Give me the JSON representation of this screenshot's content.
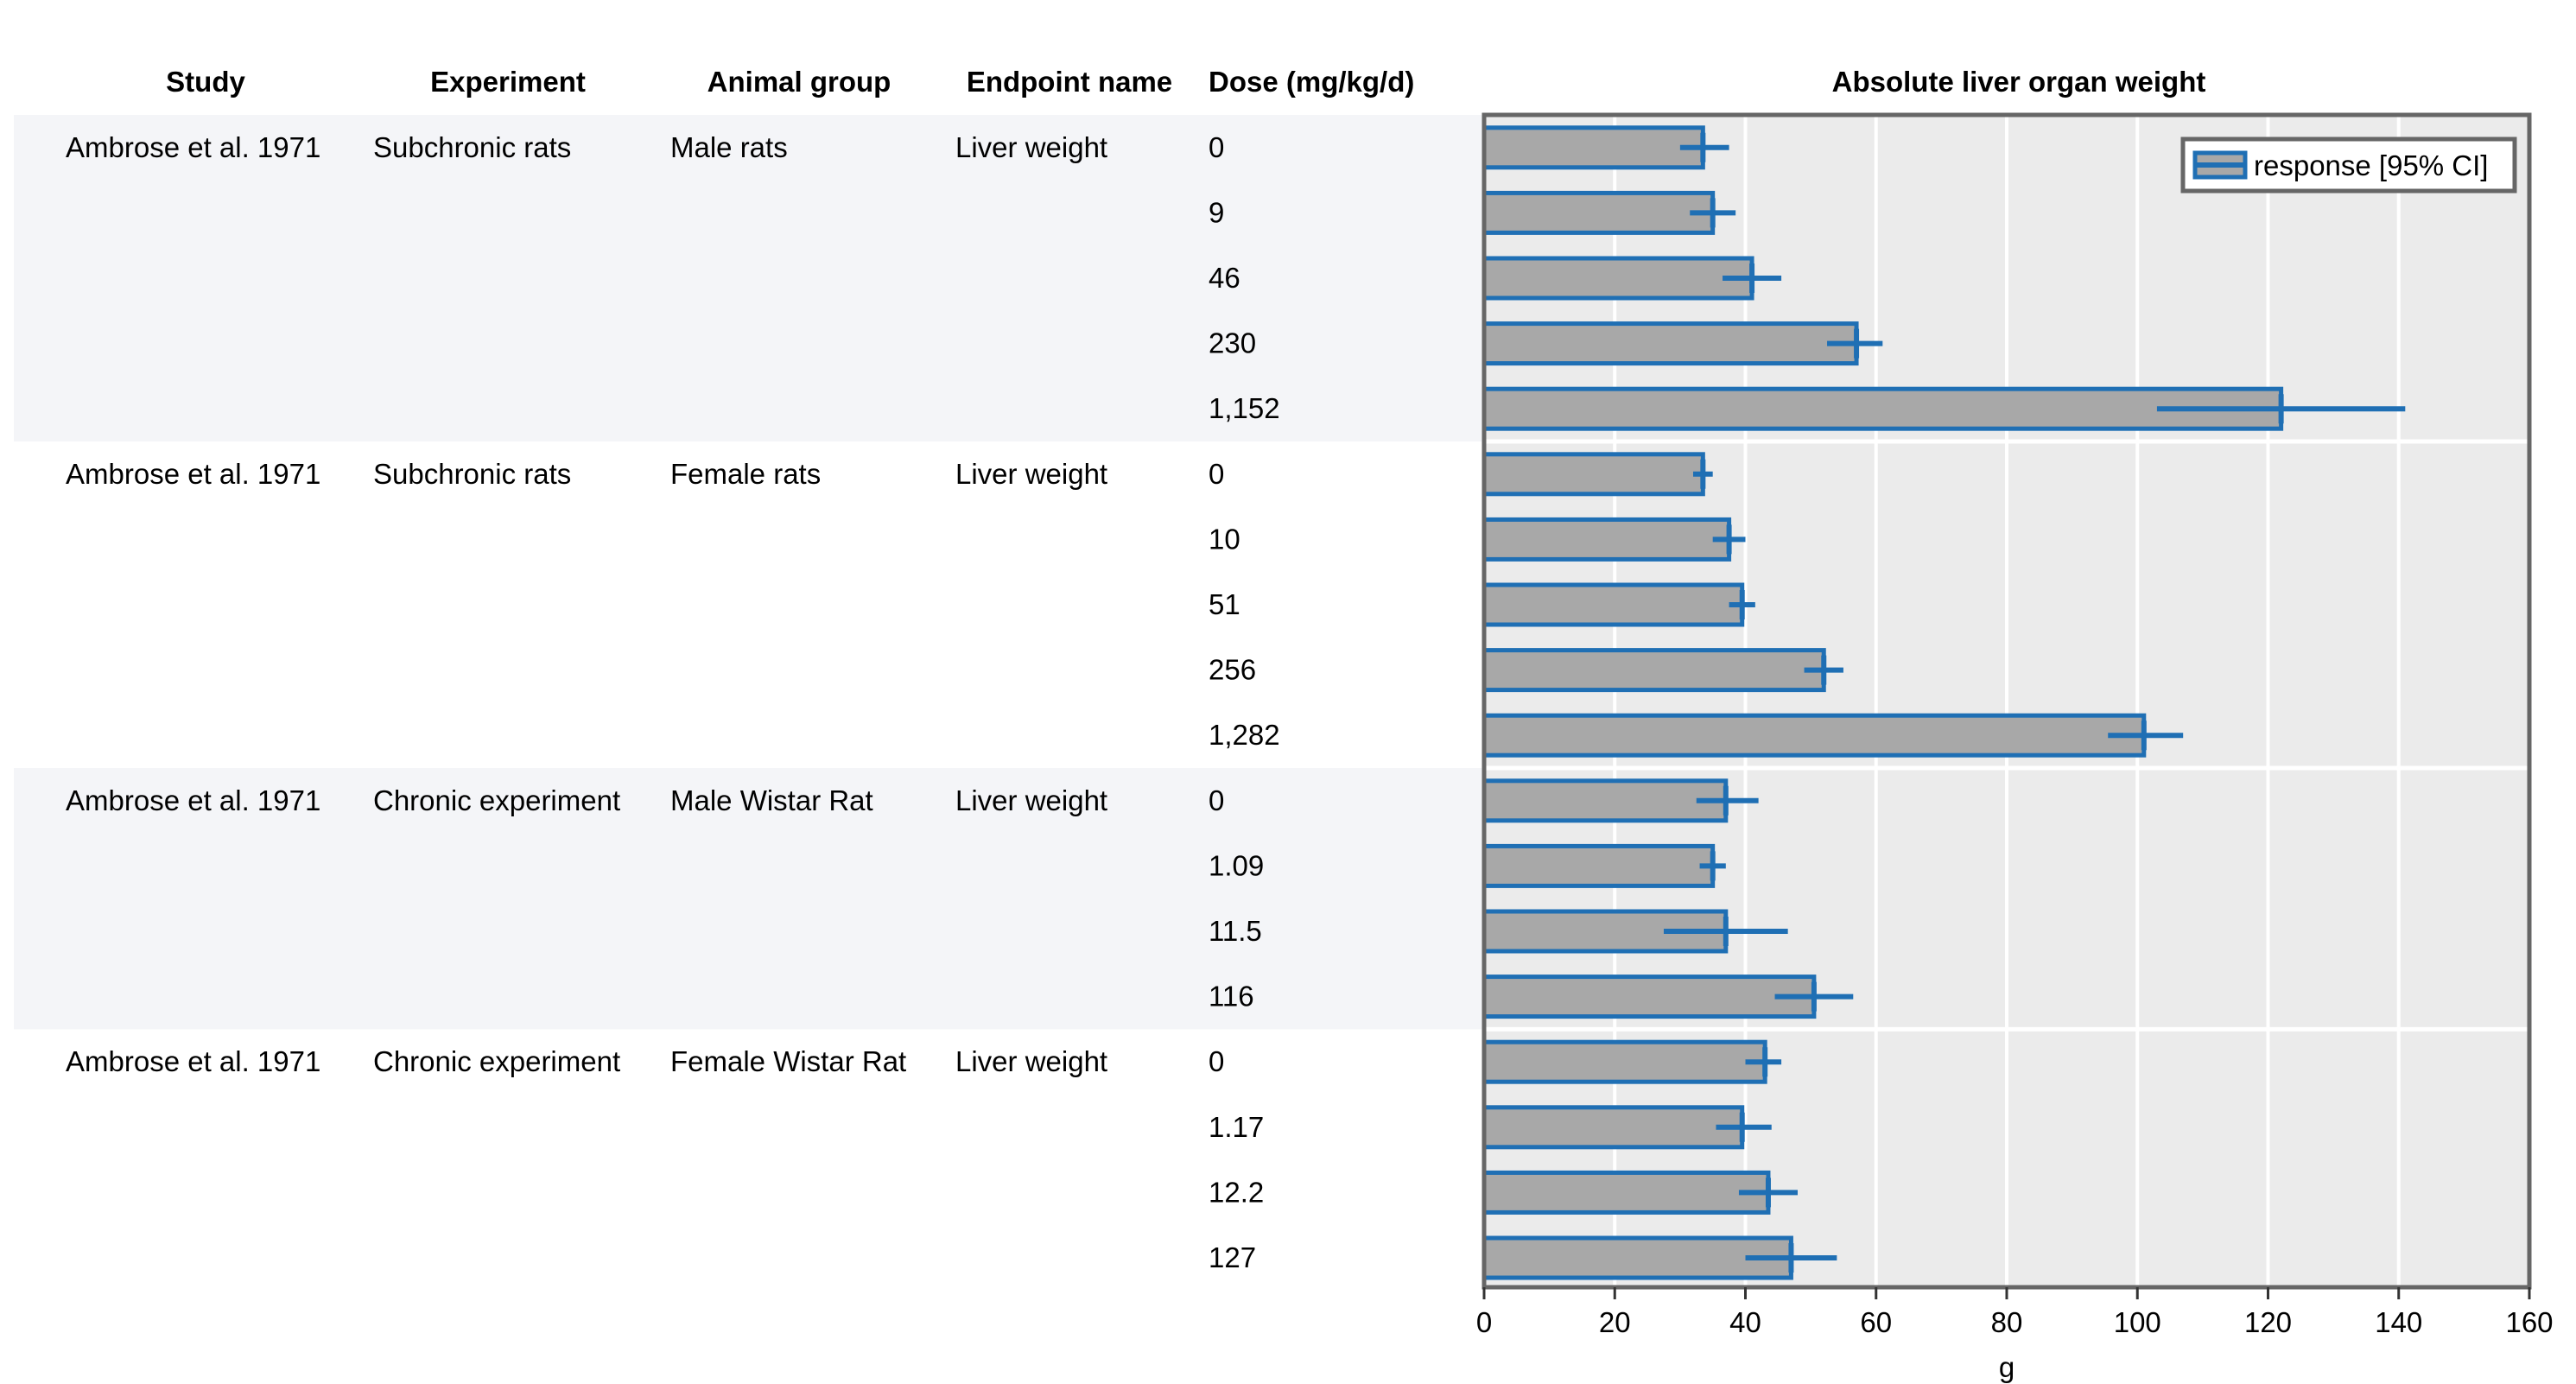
{
  "chart_data": {
    "type": "bar",
    "orientation": "horizontal",
    "title": "Absolute liver organ weight",
    "xlabel": "g",
    "xlim": [
      0,
      160
    ],
    "xticks": [
      0,
      20,
      40,
      60,
      80,
      100,
      120,
      140,
      160
    ],
    "grid": true,
    "legend": {
      "label": "response [95% CI]",
      "placement": "top-right"
    },
    "colors": {
      "bar_fill": "#a8a8a8",
      "bar_stroke": "#1f6fb4",
      "ci": "#1f6fb4",
      "plot_bg": "#ebebeb",
      "plot_border": "#666666",
      "stripe": "#f4f5f8"
    },
    "columns": [
      "Study",
      "Experiment",
      "Animal group",
      "Endpoint name",
      "Dose (mg/kg/d)"
    ],
    "groups": [
      {
        "study": "Ambrose et al. 1971",
        "experiment": "Subchronic rats",
        "animal_group": "Male rats",
        "endpoint": "Liver weight",
        "rows": [
          {
            "dose": "0",
            "value": 33.5,
            "ci": [
              30.0,
              37.5
            ]
          },
          {
            "dose": "9",
            "value": 35.0,
            "ci": [
              31.5,
              38.5
            ]
          },
          {
            "dose": "46",
            "value": 41.0,
            "ci": [
              36.5,
              45.5
            ]
          },
          {
            "dose": "230",
            "value": 57.0,
            "ci": [
              52.5,
              61.0
            ]
          },
          {
            "dose": "1,152",
            "value": 122.0,
            "ci": [
              103.0,
              141.0
            ]
          }
        ]
      },
      {
        "study": "Ambrose et al. 1971",
        "experiment": "Subchronic rats",
        "animal_group": "Female rats",
        "endpoint": "Liver weight",
        "rows": [
          {
            "dose": "0",
            "value": 33.5,
            "ci": [
              32.0,
              35.0
            ]
          },
          {
            "dose": "10",
            "value": 37.5,
            "ci": [
              35.0,
              40.0
            ]
          },
          {
            "dose": "51",
            "value": 39.5,
            "ci": [
              37.5,
              41.5
            ]
          },
          {
            "dose": "256",
            "value": 52.0,
            "ci": [
              49.0,
              55.0
            ]
          },
          {
            "dose": "1,282",
            "value": 101.0,
            "ci": [
              95.5,
              107.0
            ]
          }
        ]
      },
      {
        "study": "Ambrose et al. 1971",
        "experiment": "Chronic experiment",
        "animal_group": "Male Wistar Rat",
        "endpoint": "Liver weight",
        "rows": [
          {
            "dose": "0",
            "value": 37.0,
            "ci": [
              32.5,
              42.0
            ]
          },
          {
            "dose": "1.09",
            "value": 35.0,
            "ci": [
              33.0,
              37.0
            ]
          },
          {
            "dose": "11.5",
            "value": 37.0,
            "ci": [
              27.5,
              46.5
            ]
          },
          {
            "dose": "116",
            "value": 50.5,
            "ci": [
              44.5,
              56.5
            ]
          }
        ]
      },
      {
        "study": "Ambrose et al. 1971",
        "experiment": "Chronic experiment",
        "animal_group": "Female Wistar Rat",
        "endpoint": "Liver weight",
        "rows": [
          {
            "dose": "0",
            "value": 43.0,
            "ci": [
              40.0,
              45.5
            ]
          },
          {
            "dose": "1.17",
            "value": 39.5,
            "ci": [
              35.5,
              44.0
            ]
          },
          {
            "dose": "12.2",
            "value": 43.5,
            "ci": [
              39.0,
              48.0
            ]
          },
          {
            "dose": "127",
            "value": 47.0,
            "ci": [
              40.0,
              54.0
            ]
          }
        ]
      }
    ]
  }
}
